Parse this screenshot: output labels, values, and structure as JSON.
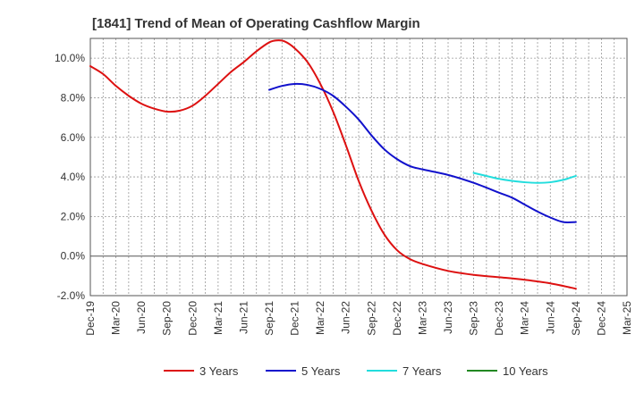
{
  "chart_data": {
    "type": "line",
    "title": "[1841]  Trend of Mean of Operating Cashflow Margin",
    "xlabel": "",
    "ylabel": "",
    "ylim": [
      -2,
      11
    ],
    "yticks": [
      -2,
      0,
      2,
      4,
      6,
      8,
      10
    ],
    "ytick_labels": [
      "-2.0%",
      "0.0%",
      "2.0%",
      "4.0%",
      "6.0%",
      "8.0%",
      "10.0%"
    ],
    "categories": [
      "Dec-19",
      "Mar-20",
      "Jun-20",
      "Sep-20",
      "Dec-20",
      "Mar-21",
      "Jun-21",
      "Sep-21",
      "Dec-21",
      "Mar-22",
      "Jun-22",
      "Sep-22",
      "Dec-22",
      "Mar-23",
      "Jun-23",
      "Sep-23",
      "Dec-23",
      "Mar-24",
      "Jun-24",
      "Sep-24",
      "Dec-24",
      "Mar-25"
    ],
    "grid": true,
    "legend_position": "bottom",
    "series": [
      {
        "name": "3 Years",
        "color": "#dd1111",
        "points": [
          [
            0,
            9.6
          ],
          [
            0.5,
            9.2
          ],
          [
            1,
            8.6
          ],
          [
            1.5,
            8.1
          ],
          [
            2,
            7.7
          ],
          [
            2.5,
            7.45
          ],
          [
            3,
            7.3
          ],
          [
            3.5,
            7.35
          ],
          [
            4,
            7.6
          ],
          [
            4.5,
            8.1
          ],
          [
            5,
            8.7
          ],
          [
            5.5,
            9.3
          ],
          [
            6,
            9.8
          ],
          [
            6.5,
            10.35
          ],
          [
            7,
            10.8
          ],
          [
            7.3,
            10.9
          ],
          [
            7.6,
            10.85
          ],
          [
            8,
            10.5
          ],
          [
            8.5,
            9.8
          ],
          [
            9,
            8.7
          ],
          [
            9.5,
            7.3
          ],
          [
            10,
            5.6
          ],
          [
            10.5,
            3.8
          ],
          [
            11,
            2.3
          ],
          [
            11.5,
            1.1
          ],
          [
            12,
            0.3
          ],
          [
            12.5,
            -0.15
          ],
          [
            13,
            -0.4
          ],
          [
            14,
            -0.75
          ],
          [
            15,
            -0.95
          ],
          [
            16,
            -1.07
          ],
          [
            17,
            -1.2
          ],
          [
            18,
            -1.38
          ],
          [
            19,
            -1.65
          ]
        ]
      },
      {
        "name": "5 Years",
        "color": "#1111cc",
        "points": [
          [
            7,
            8.4
          ],
          [
            7.5,
            8.6
          ],
          [
            8,
            8.7
          ],
          [
            8.5,
            8.65
          ],
          [
            9,
            8.45
          ],
          [
            9.5,
            8.1
          ],
          [
            10,
            7.55
          ],
          [
            10.5,
            6.9
          ],
          [
            11,
            6.1
          ],
          [
            11.5,
            5.4
          ],
          [
            12,
            4.9
          ],
          [
            12.5,
            4.55
          ],
          [
            13,
            4.38
          ],
          [
            14,
            4.1
          ],
          [
            15,
            3.7
          ],
          [
            16,
            3.2
          ],
          [
            16.5,
            2.95
          ],
          [
            17,
            2.6
          ],
          [
            17.5,
            2.25
          ],
          [
            18,
            1.95
          ],
          [
            18.5,
            1.72
          ],
          [
            19,
            1.72
          ]
        ]
      },
      {
        "name": "7 Years",
        "color": "#22dddd",
        "points": [
          [
            15,
            4.2
          ],
          [
            15.5,
            4.05
          ],
          [
            16,
            3.9
          ],
          [
            16.5,
            3.8
          ],
          [
            17,
            3.73
          ],
          [
            17.5,
            3.7
          ],
          [
            18,
            3.73
          ],
          [
            18.5,
            3.85
          ],
          [
            19,
            4.05
          ]
        ]
      },
      {
        "name": "10 Years",
        "color": "#228822",
        "points": []
      }
    ]
  }
}
